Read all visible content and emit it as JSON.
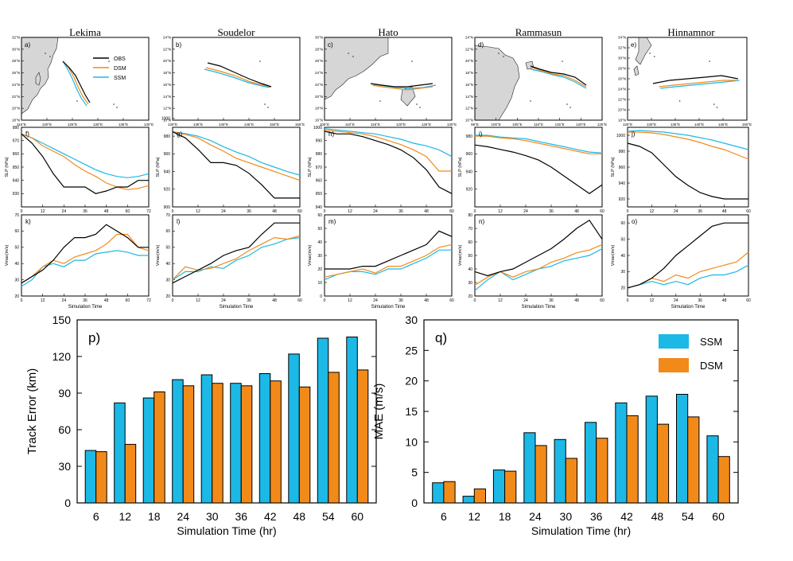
{
  "storms": [
    "Lekima",
    "Soudelor",
    "Hato",
    "Rammasun",
    "Hinnamnor"
  ],
  "colors": {
    "obs": "#000000",
    "dsm": "#f28a1a",
    "ssm": "#1cb8e6"
  },
  "map_labels": [
    "a)",
    "b)",
    "c)",
    "d)",
    "e)"
  ],
  "map_legend": [
    "OBS",
    "DSM",
    "SSM"
  ],
  "map_axes": [
    {
      "xticks": [
        "115°E",
        "120°E",
        "125°E",
        "130°E",
        "135°E",
        "140°E"
      ],
      "yticks": [
        "18°N",
        "20°N",
        "22°N",
        "24°N",
        "26°N",
        "28°N",
        "30°N",
        "32°N"
      ]
    },
    {
      "xticks": [
        "130°E",
        "135°E",
        "140°E",
        "145°E",
        "150°E",
        "155°E"
      ],
      "yticks": [
        "10°N",
        "12°N",
        "14°N",
        "16°N",
        "18°N",
        "20°N",
        "22°N",
        "24°N"
      ]
    },
    {
      "xticks": [
        "105°E",
        "110°E",
        "115°E",
        "120°E",
        "125°E",
        "130°E"
      ],
      "yticks": [
        "16°N",
        "18°N",
        "20°N",
        "22°N",
        "24°N",
        "26°N",
        "28°N",
        "30°N"
      ]
    },
    {
      "xticks": [
        "95°E",
        "100°E",
        "105°E",
        "110°E",
        "115°E",
        "120°E",
        "125°E"
      ],
      "yticks": [
        "10°N",
        "12°N",
        "14°N",
        "16°N",
        "18°N",
        "20°N",
        "22°N",
        "24°N"
      ]
    },
    {
      "xticks": [
        "125°E",
        "130°E",
        "135°E",
        "140°E",
        "145°E",
        "150°E"
      ],
      "yticks": [
        "18°N",
        "20°N",
        "22°N",
        "24°N",
        "26°N",
        "28°N",
        "30°N",
        "32°N",
        "34°N"
      ]
    }
  ],
  "slp_labels": [
    "f)",
    "g)",
    "h)",
    "i)",
    "j)"
  ],
  "slp_ylabels": [
    "SLP (hPa)",
    "SLP (hPa)",
    "SLP (hPa)",
    "SLP (hPa)",
    "SLP (hPa)"
  ],
  "vmax_labels": [
    "k)",
    "l)",
    "m)",
    "n)",
    "o)"
  ],
  "vmax_ylabels": [
    "Vmax(m/s)",
    "Vmax(m/s)",
    "Vmax(m/s)",
    "Vmax(m/s)",
    "Vmax(m/s)"
  ],
  "sim_xlabel": "Simulation Time",
  "chart_data": [
    {
      "type": "line",
      "label": "f) Lekima SLP",
      "x": [
        0,
        6,
        12,
        18,
        24,
        30,
        36,
        42,
        48,
        54,
        60,
        66,
        72
      ],
      "xlim": [
        0,
        72
      ],
      "xticks": [
        "0",
        "12",
        "24",
        "36",
        "48",
        "60",
        "72"
      ],
      "ylim": [
        920,
        980
      ],
      "yticks": [
        "930",
        "940",
        "950",
        "960",
        "970",
        "980"
      ],
      "series": [
        {
          "name": "OBS",
          "values": [
            975,
            968,
            958,
            945,
            935,
            935,
            935,
            930,
            932,
            935,
            935,
            940,
            940
          ]
        },
        {
          "name": "DSM",
          "values": [
            975,
            972,
            966,
            962,
            958,
            952,
            947,
            943,
            938,
            935,
            933,
            934,
            936
          ]
        },
        {
          "name": "SSM",
          "values": [
            975,
            972,
            968,
            964,
            960,
            956,
            952,
            948,
            945,
            943,
            942,
            943,
            945
          ]
        }
      ]
    },
    {
      "type": "line",
      "label": "g) Soudelor SLP",
      "x": [
        0,
        6,
        12,
        18,
        24,
        30,
        36,
        42,
        48,
        54,
        60
      ],
      "xlim": [
        0,
        60
      ],
      "xticks": [
        "0",
        "12",
        "24",
        "36",
        "48",
        "60"
      ],
      "ylim": [
        900,
        990
      ],
      "yticks": [
        "900",
        "920",
        "940",
        "960",
        "980",
        "1000"
      ],
      "series": [
        {
          "name": "OBS",
          "values": [
            985,
            978,
            965,
            950,
            950,
            947,
            938,
            925,
            910,
            910,
            910
          ]
        },
        {
          "name": "DSM",
          "values": [
            985,
            982,
            978,
            970,
            963,
            955,
            950,
            945,
            940,
            935,
            930
          ]
        },
        {
          "name": "SSM",
          "values": [
            985,
            983,
            980,
            975,
            968,
            962,
            957,
            950,
            945,
            940,
            936
          ]
        }
      ]
    },
    {
      "type": "line",
      "label": "h) Hato SLP",
      "x": [
        0,
        6,
        12,
        18,
        24,
        30,
        36,
        42,
        48,
        54,
        60
      ],
      "xlim": [
        0,
        60
      ],
      "xticks": [
        "0",
        "12",
        "24",
        "36",
        "48",
        "60"
      ],
      "ylim": [
        940,
        1000
      ],
      "yticks": [
        "940",
        "950",
        "960",
        "970",
        "980",
        "990",
        "1000"
      ],
      "series": [
        {
          "name": "OBS",
          "values": [
            997,
            995,
            995,
            993,
            990,
            987,
            983,
            977,
            968,
            955,
            950
          ]
        },
        {
          "name": "DSM",
          "values": [
            998,
            997,
            996,
            995,
            993,
            990,
            987,
            983,
            978,
            967,
            967
          ]
        },
        {
          "name": "SSM",
          "values": [
            999,
            998,
            997,
            996,
            995,
            993,
            991,
            988,
            986,
            983,
            978
          ]
        }
      ]
    },
    {
      "type": "line",
      "label": "i) Rammasun SLP",
      "x": [
        0,
        6,
        12,
        18,
        24,
        30,
        36,
        42,
        48,
        54,
        60
      ],
      "xlim": [
        0,
        60
      ],
      "xticks": [
        "0",
        "12",
        "24",
        "36",
        "48",
        "60"
      ],
      "ylim": [
        900,
        990
      ],
      "yticks": [
        "920",
        "940",
        "960",
        "980"
      ],
      "series": [
        {
          "name": "OBS",
          "values": [
            970,
            968,
            965,
            962,
            958,
            953,
            945,
            935,
            925,
            915,
            925
          ]
        },
        {
          "name": "DSM",
          "values": [
            980,
            980,
            978,
            977,
            975,
            972,
            969,
            966,
            963,
            960,
            960
          ]
        },
        {
          "name": "SSM",
          "values": [
            981,
            981,
            979,
            978,
            977,
            974,
            971,
            968,
            965,
            962,
            961
          ]
        }
      ]
    },
    {
      "type": "line",
      "label": "j) Hinnamnor SLP",
      "x": [
        0,
        6,
        12,
        18,
        24,
        30,
        36,
        42,
        48,
        54,
        60
      ],
      "xlim": [
        0,
        60
      ],
      "xticks": [
        "0",
        "12",
        "24",
        "36",
        "48",
        "60"
      ],
      "ylim": [
        910,
        1010
      ],
      "yticks": [
        "920",
        "940",
        "960",
        "980",
        "1000"
      ],
      "series": [
        {
          "name": "OBS",
          "values": [
            990,
            986,
            978,
            963,
            948,
            937,
            928,
            923,
            920,
            920,
            920
          ]
        },
        {
          "name": "DSM",
          "values": [
            1004,
            1004,
            1003,
            1001,
            998,
            995,
            991,
            986,
            982,
            976,
            970
          ]
        },
        {
          "name": "SSM",
          "values": [
            1005,
            1006,
            1005,
            1004,
            1002,
            1000,
            997,
            994,
            990,
            986,
            982
          ]
        }
      ]
    },
    {
      "type": "line",
      "label": "k) Lekima Vmax",
      "x": [
        0,
        6,
        12,
        18,
        24,
        30,
        36,
        42,
        48,
        54,
        60,
        66,
        72
      ],
      "xlim": [
        0,
        72
      ],
      "xticks": [
        "0",
        "12",
        "24",
        "36",
        "48",
        "60",
        "72"
      ],
      "ylim": [
        20,
        70
      ],
      "yticks": [
        "20",
        "30",
        "40",
        "50",
        "60",
        "70"
      ],
      "series": [
        {
          "name": "OBS",
          "values": [
            28,
            32,
            36,
            42,
            50,
            56,
            56,
            58,
            64,
            60,
            56,
            50,
            50
          ]
        },
        {
          "name": "DSM",
          "values": [
            28,
            32,
            38,
            42,
            40,
            44,
            46,
            48,
            52,
            58,
            58,
            50,
            48
          ]
        },
        {
          "name": "SSM",
          "values": [
            26,
            30,
            38,
            40,
            38,
            42,
            42,
            46,
            47,
            48,
            47,
            45,
            45
          ]
        }
      ]
    },
    {
      "type": "line",
      "label": "l) Soudelor Vmax",
      "x": [
        0,
        6,
        12,
        18,
        24,
        30,
        36,
        42,
        48,
        54,
        60
      ],
      "xlim": [
        0,
        60
      ],
      "xticks": [
        "0",
        "12",
        "24",
        "36",
        "48",
        "60"
      ],
      "ylim": [
        20,
        70
      ],
      "yticks": [
        "20",
        "30",
        "40",
        "50",
        "60",
        "70"
      ],
      "series": [
        {
          "name": "OBS",
          "values": [
            28,
            32,
            36,
            40,
            45,
            48,
            50,
            58,
            65,
            65,
            65
          ]
        },
        {
          "name": "DSM",
          "values": [
            30,
            38,
            36,
            37,
            40,
            43,
            48,
            52,
            56,
            55,
            57
          ]
        },
        {
          "name": "SSM",
          "values": [
            30,
            35,
            35,
            38,
            37,
            42,
            45,
            50,
            52,
            55,
            56
          ]
        }
      ]
    },
    {
      "type": "line",
      "label": "m) Hato Vmax",
      "x": [
        0,
        6,
        12,
        18,
        24,
        30,
        36,
        42,
        48,
        54,
        60
      ],
      "xlim": [
        0,
        60
      ],
      "xticks": [
        "0",
        "12",
        "24",
        "36",
        "48",
        "60"
      ],
      "ylim": [
        0,
        60
      ],
      "yticks": [
        "0",
        "10",
        "20",
        "30",
        "40",
        "50",
        "60"
      ],
      "series": [
        {
          "name": "OBS",
          "values": [
            20,
            20,
            20,
            22,
            22,
            26,
            30,
            34,
            38,
            48,
            44
          ]
        },
        {
          "name": "DSM",
          "values": [
            14,
            16,
            18,
            20,
            17,
            22,
            22,
            26,
            30,
            36,
            38
          ]
        },
        {
          "name": "SSM",
          "values": [
            12,
            16,
            18,
            18,
            16,
            20,
            20,
            24,
            28,
            34,
            34
          ]
        }
      ]
    },
    {
      "type": "line",
      "label": "n) Rammasun Vmax",
      "x": [
        0,
        6,
        12,
        18,
        24,
        30,
        36,
        42,
        48,
        54,
        60
      ],
      "xlim": [
        0,
        60
      ],
      "xticks": [
        "0",
        "12",
        "24",
        "36",
        "48",
        "60"
      ],
      "ylim": [
        20,
        80
      ],
      "yticks": [
        "20",
        "30",
        "40",
        "50",
        "60",
        "70",
        "80"
      ],
      "series": [
        {
          "name": "OBS",
          "values": [
            38,
            35,
            38,
            40,
            45,
            50,
            55,
            62,
            70,
            76,
            62
          ]
        },
        {
          "name": "DSM",
          "values": [
            28,
            34,
            38,
            34,
            38,
            40,
            45,
            48,
            52,
            54,
            58
          ]
        },
        {
          "name": "SSM",
          "values": [
            24,
            32,
            38,
            32,
            36,
            40,
            42,
            46,
            48,
            50,
            55
          ]
        }
      ]
    },
    {
      "type": "line",
      "label": "o) Hinnamnor Vmax",
      "x": [
        0,
        6,
        12,
        18,
        24,
        30,
        36,
        42,
        48,
        54,
        60
      ],
      "xlim": [
        0,
        60
      ],
      "xticks": [
        "0",
        "12",
        "24",
        "36",
        "48",
        "60"
      ],
      "ylim": [
        15,
        65
      ],
      "yticks": [
        "20",
        "30",
        "40",
        "50",
        "60"
      ],
      "series": [
        {
          "name": "OBS",
          "values": [
            20,
            22,
            26,
            32,
            40,
            46,
            52,
            58,
            60,
            60,
            60
          ]
        },
        {
          "name": "DSM",
          "values": [
            20,
            22,
            26,
            24,
            28,
            26,
            30,
            32,
            34,
            36,
            42
          ]
        },
        {
          "name": "SSM",
          "values": [
            20,
            22,
            24,
            22,
            24,
            22,
            26,
            28,
            28,
            30,
            34
          ]
        }
      ]
    },
    {
      "type": "bar",
      "label": "p)",
      "categories": [
        "6",
        "12",
        "18",
        "24",
        "30",
        "36",
        "42",
        "48",
        "54",
        "60"
      ],
      "xlabel": "Simulation Time (hr)",
      "ylabel": "Track Error (km)",
      "ylim": [
        0,
        150
      ],
      "yticks": [
        "0",
        "30",
        "60",
        "90",
        "120",
        "150"
      ],
      "series": [
        {
          "name": "SSM",
          "values": [
            43,
            82,
            86,
            101,
            105,
            98,
            106,
            122,
            135,
            136
          ]
        },
        {
          "name": "DSM",
          "values": [
            42,
            48,
            91,
            96,
            98,
            96,
            100,
            95,
            107,
            109
          ]
        }
      ]
    },
    {
      "type": "bar",
      "label": "q)",
      "categories": [
        "6",
        "12",
        "18",
        "24",
        "30",
        "36",
        "42",
        "48",
        "54",
        "60"
      ],
      "xlabel": "Simulation Time (hr)",
      "ylabel": "MAE (m/s)",
      "ylim": [
        0,
        30
      ],
      "yticks": [
        "0",
        "5",
        "10",
        "15",
        "20",
        "25",
        "30"
      ],
      "legend": "top-right",
      "series": [
        {
          "name": "SSM",
          "values": [
            3.3,
            1.1,
            5.4,
            11.5,
            10.4,
            13.2,
            16.4,
            17.5,
            17.8,
            11.0
          ]
        },
        {
          "name": "DSM",
          "values": [
            3.5,
            2.3,
            5.2,
            9.4,
            7.3,
            10.6,
            14.3,
            12.9,
            14.1,
            7.6
          ]
        }
      ]
    }
  ]
}
